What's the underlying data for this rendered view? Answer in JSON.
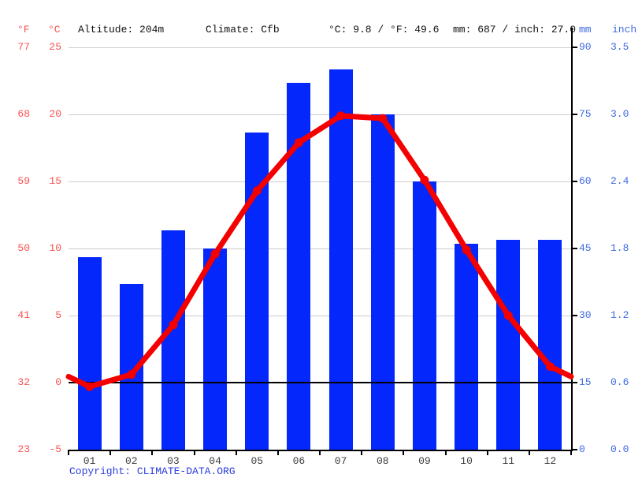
{
  "header": {
    "fahrenheit_label": "°F",
    "celsius_label": "°C",
    "altitude": "Altitude: 204m",
    "climate": "Climate: Cfb",
    "temp_summary": "°C: 9.8 / °F: 49.6",
    "precip_summary": "mm: 687 / inch: 27.0",
    "mm_label": "mm",
    "inch_label": "inch"
  },
  "axes": {
    "fahrenheit": [
      77,
      68,
      59,
      50,
      41,
      32,
      23
    ],
    "celsius": [
      25,
      20,
      15,
      10,
      5,
      0,
      -5
    ],
    "mm": [
      90,
      75,
      60,
      45,
      30,
      15,
      0
    ],
    "inch": [
      "3.5",
      "3.0",
      "2.4",
      "1.8",
      "1.2",
      "0.6",
      "0.0"
    ]
  },
  "chart_data": [
    {
      "type": "bar",
      "name": "Precipitation",
      "unit": "mm",
      "categories": [
        "01",
        "02",
        "03",
        "04",
        "05",
        "06",
        "07",
        "08",
        "09",
        "10",
        "11",
        "12"
      ],
      "values": [
        43,
        37,
        49,
        45,
        71,
        82,
        85,
        75,
        60,
        46,
        47,
        47
      ],
      "ylim": [
        0,
        90
      ],
      "annual_total_mm": 687,
      "annual_total_inch": 27.0,
      "legend": "none",
      "grid": "horizontal"
    },
    {
      "type": "line",
      "name": "Temperature",
      "unit": "°C",
      "categories": [
        "01",
        "02",
        "03",
        "04",
        "05",
        "06",
        "07",
        "08",
        "09",
        "10",
        "11",
        "12"
      ],
      "values": [
        -0.3,
        0.6,
        4.3,
        9.6,
        14.3,
        17.9,
        19.9,
        19.7,
        15.1,
        9.9,
        5.0,
        1.2
      ],
      "ylim": [
        -5,
        25
      ],
      "annual_mean_c": 9.8,
      "annual_mean_f": 49.6,
      "marker": "dot"
    }
  ],
  "footer": {
    "copyright_label": "Copyright:",
    "copyright_link": "CLIMATE-DATA.ORG"
  },
  "colors": {
    "bar_blue": "#0427fb",
    "line_red": "#f40000",
    "label_red": "#fa5252",
    "label_blue": "#3f6ae0",
    "grid_gray": "#cccccc",
    "month_gray": "#3d3d3d",
    "header_black": "#111111",
    "link_blue": "#2b3cdf"
  }
}
